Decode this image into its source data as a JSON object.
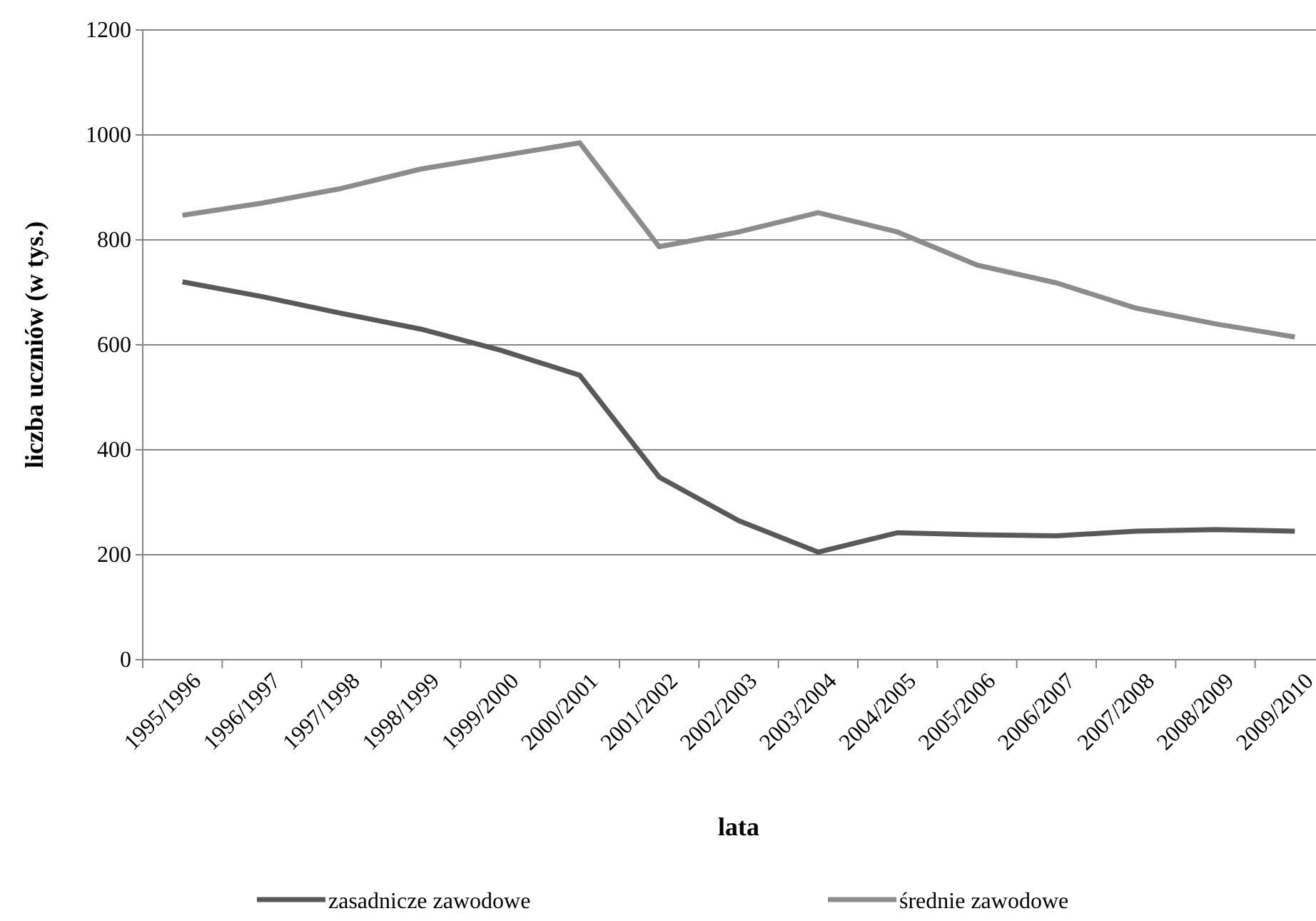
{
  "chart_data": {
    "type": "line",
    "xlabel": "lata",
    "ylabel": "liczba uczniów (w tys.)",
    "categories": [
      "1995/1996",
      "1996/1997",
      "1997/1998",
      "1998/1999",
      "1999/2000",
      "2000/2001",
      "2001/2002",
      "2002/2003",
      "2003/2004",
      "2004/2005",
      "2005/2006",
      "2006/2007",
      "2007/2008",
      "2008/2009",
      "2009/2010"
    ],
    "series": [
      {
        "name": "zasadnicze zawodowe",
        "color": "#595959",
        "values": [
          720,
          692,
          660,
          630,
          590,
          542,
          348,
          265,
          205,
          242,
          238,
          236,
          245,
          248,
          245
        ]
      },
      {
        "name": "średnie zawodowe",
        "color": "#8c8c8c",
        "values": [
          847,
          870,
          898,
          935,
          960,
          985,
          787,
          815,
          852,
          815,
          752,
          718,
          670,
          640,
          615
        ]
      }
    ],
    "ylim": [
      0,
      1200
    ],
    "yticks": [
      0,
      200,
      400,
      600,
      800,
      1000,
      1200
    ],
    "grid": "y",
    "legend": "bottom",
    "marker": "none",
    "line_style": "solid"
  }
}
